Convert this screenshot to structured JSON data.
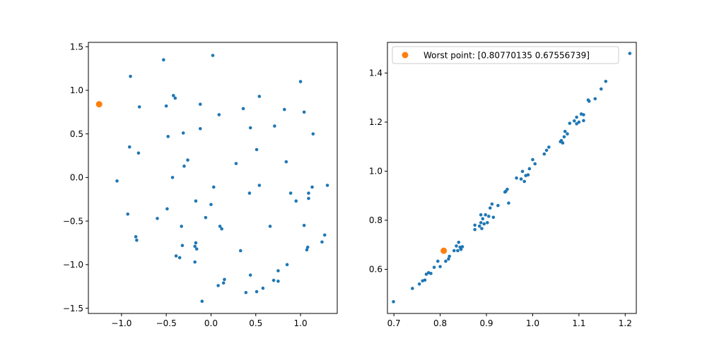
{
  "chart_data": [
    {
      "type": "scatter",
      "xlim": [
        -1.37,
        1.41
      ],
      "ylim": [
        -1.56,
        1.55
      ],
      "xticks": [
        -1.0,
        -0.5,
        0.0,
        0.5,
        1.0
      ],
      "xtick_labels": [
        "−1.0",
        "−0.5",
        "0.0",
        "0.5",
        "1.0"
      ],
      "yticks": [
        -1.5,
        -1.0,
        -0.5,
        0.0,
        0.5,
        1.0,
        1.5
      ],
      "ytick_labels": [
        "−1.5",
        "−1.0",
        "−0.5",
        "0.0",
        "0.5",
        "1.0",
        "1.5"
      ],
      "grid": false,
      "series": [
        {
          "color": "#1f77b4",
          "marker": "dot",
          "points": [
            [
              0.02,
              1.4
            ],
            [
              -0.53,
              1.35
            ],
            [
              -0.9,
              1.16
            ],
            [
              1.0,
              1.1
            ],
            [
              -0.8,
              0.81
            ],
            [
              -0.42,
              0.94
            ],
            [
              -0.4,
              0.91
            ],
            [
              -0.12,
              0.84
            ],
            [
              -0.5,
              0.82
            ],
            [
              0.54,
              0.93
            ],
            [
              0.09,
              0.72
            ],
            [
              0.36,
              0.79
            ],
            [
              0.82,
              0.78
            ],
            [
              1.04,
              0.75
            ],
            [
              0.44,
              0.57
            ],
            [
              0.71,
              0.59
            ],
            [
              -0.12,
              0.56
            ],
            [
              -0.31,
              0.51
            ],
            [
              -0.48,
              0.47
            ],
            [
              1.14,
              0.5
            ],
            [
              -0.91,
              0.35
            ],
            [
              -0.81,
              0.28
            ],
            [
              0.51,
              0.32
            ],
            [
              -0.26,
              0.2
            ],
            [
              -0.3,
              0.13
            ],
            [
              0.28,
              0.16
            ],
            [
              0.84,
              0.18
            ],
            [
              -0.43,
              0.0
            ],
            [
              -1.05,
              -0.04
            ],
            [
              0.03,
              -0.11
            ],
            [
              0.54,
              -0.09
            ],
            [
              1.13,
              -0.11
            ],
            [
              1.3,
              -0.09
            ],
            [
              0.43,
              -0.18
            ],
            [
              0.89,
              -0.18
            ],
            [
              1.09,
              -0.18
            ],
            [
              0.95,
              -0.27
            ],
            [
              1.09,
              -0.24
            ],
            [
              -0.17,
              -0.27
            ],
            [
              0.0,
              -0.31
            ],
            [
              -0.49,
              -0.36
            ],
            [
              -0.93,
              -0.42
            ],
            [
              -0.06,
              -0.46
            ],
            [
              -0.6,
              -0.47
            ],
            [
              1.04,
              -0.55
            ],
            [
              0.1,
              -0.56
            ],
            [
              -0.33,
              -0.56
            ],
            [
              0.66,
              -0.56
            ],
            [
              0.12,
              -0.59
            ],
            [
              1.27,
              -0.66
            ],
            [
              -0.84,
              -0.68
            ],
            [
              -0.83,
              -0.72
            ],
            [
              1.24,
              -0.74
            ],
            [
              -0.17,
              -0.75
            ],
            [
              -0.32,
              -0.78
            ],
            [
              1.08,
              -0.8
            ],
            [
              -0.18,
              -0.79
            ],
            [
              -0.16,
              -0.82
            ],
            [
              1.07,
              -0.83
            ],
            [
              0.33,
              -0.84
            ],
            [
              -0.39,
              -0.9
            ],
            [
              -0.35,
              -0.92
            ],
            [
              -0.18,
              -0.97
            ],
            [
              0.85,
              -1.0
            ],
            [
              0.75,
              -1.07
            ],
            [
              0.44,
              -1.12
            ],
            [
              0.7,
              -1.18
            ],
            [
              0.75,
              -1.19
            ],
            [
              0.15,
              -1.17
            ],
            [
              0.14,
              -1.21
            ],
            [
              0.08,
              -1.24
            ],
            [
              0.58,
              -1.27
            ],
            [
              0.39,
              -1.32
            ],
            [
              0.51,
              -1.31
            ],
            [
              -0.1,
              -1.42
            ]
          ]
        },
        {
          "color": "#ff7f0e",
          "marker": "large-dot",
          "points": [
            [
              -1.25,
              0.84
            ]
          ]
        }
      ]
    },
    {
      "type": "scatter",
      "xlim": [
        0.686,
        1.224
      ],
      "ylim": [
        0.42,
        1.525
      ],
      "xticks": [
        0.7,
        0.8,
        0.9,
        1.0,
        1.1,
        1.2
      ],
      "xtick_labels": [
        "0.7",
        "0.8",
        "0.9",
        "1.0",
        "1.1",
        "1.2"
      ],
      "yticks": [
        0.6,
        0.8,
        1.0,
        1.2,
        1.4
      ],
      "ytick_labels": [
        "0.6",
        "0.8",
        "1.0",
        "1.2",
        "1.4"
      ],
      "grid": false,
      "legend": {
        "position": "top-left",
        "entries": [
          {
            "label": "Worst point: [0.80770135 0.67556739]",
            "color": "#ff7f0e"
          }
        ]
      },
      "series": [
        {
          "color": "#1f77b4",
          "marker": "dot",
          "points": [
            [
              0.699,
              0.468
            ],
            [
              0.74,
              0.522
            ],
            [
              0.755,
              0.54
            ],
            [
              0.762,
              0.553
            ],
            [
              0.767,
              0.556
            ],
            [
              0.77,
              0.58
            ],
            [
              0.775,
              0.586
            ],
            [
              0.78,
              0.583
            ],
            [
              0.787,
              0.608
            ],
            [
              0.795,
              0.633
            ],
            [
              0.8,
              0.611
            ],
            [
              0.812,
              0.633
            ],
            [
              0.818,
              0.642
            ],
            [
              0.82,
              0.653
            ],
            [
              0.83,
              0.676
            ],
            [
              0.835,
              0.695
            ],
            [
              0.838,
              0.676
            ],
            [
              0.84,
              0.71
            ],
            [
              0.843,
              0.69
            ],
            [
              0.845,
              0.681
            ],
            [
              0.848,
              0.692
            ],
            [
              0.875,
              0.762
            ],
            [
              0.875,
              0.78
            ],
            [
              0.885,
              0.776
            ],
            [
              0.888,
              0.79
            ],
            [
              0.888,
              0.822
            ],
            [
              0.89,
              0.766
            ],
            [
              0.892,
              0.806
            ],
            [
              0.895,
              0.785
            ],
            [
              0.898,
              0.822
            ],
            [
              0.902,
              0.79
            ],
            [
              0.905,
              0.816
            ],
            [
              0.908,
              0.85
            ],
            [
              0.912,
              0.866
            ],
            [
              0.915,
              0.812
            ],
            [
              0.925,
              0.86
            ],
            [
              0.94,
              0.915
            ],
            [
              0.942,
              0.918
            ],
            [
              0.945,
              0.926
            ],
            [
              0.948,
              0.87
            ],
            [
              0.965,
              0.972
            ],
            [
              0.975,
              0.968
            ],
            [
              0.978,
              0.999
            ],
            [
              0.982,
              0.958
            ],
            [
              0.985,
              0.982
            ],
            [
              0.99,
              0.985
            ],
            [
              0.993,
              1.01
            ],
            [
              1.0,
              1.047
            ],
            [
              1.005,
              1.03
            ],
            [
              1.025,
              1.07
            ],
            [
              1.03,
              1.085
            ],
            [
              1.035,
              1.098
            ],
            [
              1.06,
              1.12
            ],
            [
              1.062,
              1.125
            ],
            [
              1.065,
              1.115
            ],
            [
              1.068,
              1.14
            ],
            [
              1.07,
              1.162
            ],
            [
              1.075,
              1.152
            ],
            [
              1.08,
              1.195
            ],
            [
              1.09,
              1.205
            ],
            [
              1.095,
              1.22
            ],
            [
              1.095,
              1.193
            ],
            [
              1.1,
              1.2
            ],
            [
              1.105,
              1.233
            ],
            [
              1.11,
              1.206
            ],
            [
              1.11,
              1.23
            ],
            [
              1.12,
              1.29
            ],
            [
              1.122,
              1.285
            ],
            [
              1.135,
              1.295
            ],
            [
              1.148,
              1.335
            ],
            [
              1.158,
              1.366
            ],
            [
              1.21,
              1.48
            ]
          ]
        },
        {
          "color": "#ff7f0e",
          "marker": "large-dot",
          "points": [
            [
              0.8077,
              0.6756
            ]
          ]
        }
      ]
    }
  ]
}
